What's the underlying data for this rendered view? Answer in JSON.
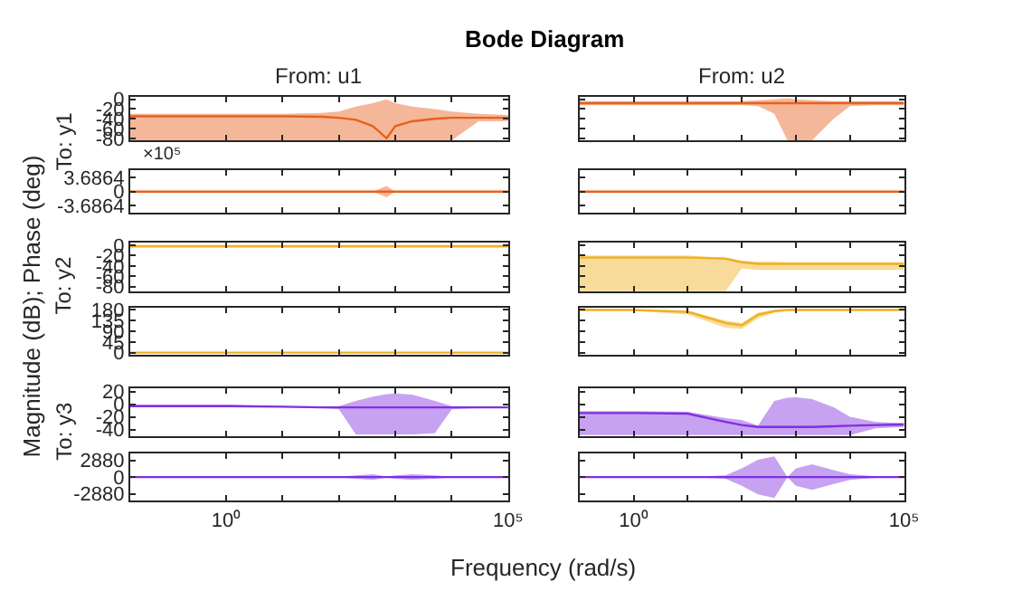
{
  "chart_data": [
    {
      "type": "line",
      "log": "x",
      "title": "From: u1",
      "ylabel": "To: y1",
      "annotations": [
        "Bode Diagram",
        "Magnitude (dB); Phase (deg)",
        "Frequency (rad/s)"
      ],
      "x": [
        0.02,
        0.1,
        1,
        10,
        50,
        100,
        200,
        400,
        700,
        1000,
        2000,
        5000,
        10000,
        30000,
        100000
      ],
      "xlim": [
        0.02,
        100000
      ],
      "xticks": [
        {
          "value": 1,
          "label": null
        },
        {
          "value": 10,
          "label": null
        },
        {
          "value": 100,
          "label": null
        },
        {
          "value": 1000,
          "label": null
        },
        {
          "value": 10000,
          "label": null
        },
        {
          "value": 100000,
          "label": null
        }
      ],
      "ylim": [
        -85,
        5
      ],
      "yticks": [
        0,
        -20,
        -40,
        -60,
        -80
      ],
      "tick_labels": "y",
      "series": [
        {
          "color": "#e8601c",
          "values": [
            -35,
            -35,
            -35,
            -35,
            -36,
            -38,
            -42,
            -55,
            -80,
            -55,
            -45,
            -40,
            -38,
            -38,
            -38
          ],
          "lower": [
            -84,
            -84,
            -84,
            -84,
            -84,
            -84,
            -84,
            -84,
            -84,
            -84,
            -84,
            -84,
            -84,
            -45,
            -45
          ],
          "upper": [
            -30,
            -30,
            -30,
            -30,
            -28,
            -25,
            -15,
            -8,
            0,
            -8,
            -15,
            -20,
            -25,
            -30,
            -32
          ]
        }
      ]
    },
    {
      "type": "line",
      "log": "x",
      "title": "From: u2",
      "x": [
        0.1,
        1,
        10,
        50,
        100,
        200,
        400,
        700,
        1000,
        2000,
        5000,
        10000,
        30000,
        100000
      ],
      "xlim": [
        0.1,
        100000
      ],
      "xticks": [
        {
          "value": 1,
          "label": null
        },
        {
          "value": 10,
          "label": null
        },
        {
          "value": 100,
          "label": null
        },
        {
          "value": 1000,
          "label": null
        },
        {
          "value": 10000,
          "label": null
        },
        {
          "value": 100000,
          "label": null
        }
      ],
      "ylim": [
        -85,
        5
      ],
      "yticks": [
        0,
        -20,
        -40,
        -60,
        -80
      ],
      "tick_labels": false,
      "series": [
        {
          "color": "#e8601c",
          "values": [
            -8,
            -8,
            -8,
            -8,
            -8,
            -8,
            -8,
            -8,
            -8,
            -8,
            -8,
            -8,
            -8,
            -8
          ],
          "lower": [
            -12,
            -12,
            -12,
            -12,
            -12,
            -14,
            -30,
            -84,
            -84,
            -84,
            -40,
            -14,
            -12,
            -12
          ],
          "upper": [
            -4,
            -4,
            -4,
            -4,
            -4,
            -2,
            0,
            2,
            0,
            -2,
            -4,
            -4,
            -4,
            -4
          ]
        }
      ]
    },
    {
      "type": "line",
      "log": "x",
      "annotations": [
        "×10⁵"
      ],
      "x": [
        0.02,
        0.1,
        1,
        10,
        50,
        100,
        200,
        400,
        700,
        1000,
        2000,
        5000,
        10000,
        30000,
        100000
      ],
      "xlim": [
        0.02,
        100000
      ],
      "xticks": [
        {
          "value": 1,
          "label": null
        },
        {
          "value": 10,
          "label": null
        },
        {
          "value": 100,
          "label": null
        },
        {
          "value": 1000,
          "label": null
        },
        {
          "value": 10000,
          "label": null
        },
        {
          "value": 100000,
          "label": null
        }
      ],
      "ylim": [
        -5.5,
        5.5
      ],
      "yticks": [
        3.6864,
        0,
        -3.6864
      ],
      "tick_labels": "y",
      "series": [
        {
          "color": "#e8601c",
          "values": [
            0,
            0,
            0,
            0,
            0,
            0,
            0,
            0,
            0,
            0,
            0,
            0,
            0,
            0,
            0
          ],
          "lower": [
            0,
            0,
            0,
            0,
            0,
            0,
            0,
            0,
            -1.5,
            0,
            0,
            0,
            0,
            0,
            0
          ],
          "upper": [
            0,
            0,
            0,
            0,
            0,
            0,
            0,
            0,
            1.5,
            0,
            0,
            0,
            0,
            0,
            0
          ]
        }
      ]
    },
    {
      "type": "line",
      "log": "x",
      "x": [
        0.1,
        1,
        10,
        50,
        100,
        200,
        400,
        700,
        1000,
        2000,
        5000,
        10000,
        30000,
        100000
      ],
      "xlim": [
        0.1,
        100000
      ],
      "xticks": [
        {
          "value": 1,
          "label": null
        },
        {
          "value": 10,
          "label": null
        },
        {
          "value": 100,
          "label": null
        },
        {
          "value": 1000,
          "label": null
        },
        {
          "value": 10000,
          "label": null
        },
        {
          "value": 100000,
          "label": null
        }
      ],
      "ylim": [
        -5.5,
        5.5
      ],
      "yticks": [
        3.6864,
        0,
        -3.6864
      ],
      "tick_labels": false,
      "series": [
        {
          "color": "#e8601c",
          "values": [
            0,
            0,
            0,
            0,
            0,
            0,
            0,
            0,
            0,
            0,
            0,
            0,
            0,
            0
          ]
        }
      ]
    },
    {
      "type": "line",
      "log": "x",
      "ylabel": "To: y2",
      "x": [
        0.02,
        0.1,
        1,
        10,
        50,
        100,
        200,
        400,
        700,
        1000,
        2000,
        5000,
        10000,
        30000,
        100000
      ],
      "xlim": [
        0.02,
        100000
      ],
      "xticks": [
        {
          "value": 1,
          "label": null
        },
        {
          "value": 10,
          "label": null
        },
        {
          "value": 100,
          "label": null
        },
        {
          "value": 1000,
          "label": null
        },
        {
          "value": 10000,
          "label": null
        },
        {
          "value": 100000,
          "label": null
        }
      ],
      "ylim": [
        -90,
        5
      ],
      "yticks": [
        0,
        -20,
        -40,
        -60,
        -80
      ],
      "tick_labels": "y",
      "series": [
        {
          "color": "#f0b020",
          "values": [
            -2,
            -2,
            -2,
            -2,
            -2,
            -2,
            -2,
            -2,
            -2,
            -2,
            -2,
            -2,
            -2,
            -2,
            -2
          ],
          "lower": [
            -5,
            -5,
            -5,
            -5,
            -5,
            -5,
            -5,
            -5,
            -5,
            -5,
            -5,
            -5,
            -5,
            -5,
            -5
          ],
          "upper": [
            0,
            0,
            0,
            0,
            0,
            0,
            0,
            0,
            0,
            0,
            0,
            0,
            0,
            0,
            0
          ]
        }
      ]
    },
    {
      "type": "line",
      "log": "x",
      "x": [
        0.1,
        1,
        10,
        50,
        100,
        200,
        400,
        700,
        1000,
        2000,
        5000,
        10000,
        30000,
        100000
      ],
      "xlim": [
        0.1,
        100000
      ],
      "xticks": [
        {
          "value": 1,
          "label": null
        },
        {
          "value": 10,
          "label": null
        },
        {
          "value": 100,
          "label": null
        },
        {
          "value": 1000,
          "label": null
        },
        {
          "value": 10000,
          "label": null
        },
        {
          "value": 100000,
          "label": null
        }
      ],
      "ylim": [
        -90,
        5
      ],
      "yticks": [
        0,
        -20,
        -40,
        -60,
        -80
      ],
      "tick_labels": false,
      "series": [
        {
          "color": "#f0b020",
          "values": [
            -24,
            -24,
            -24,
            -26,
            -33,
            -36,
            -36,
            -36,
            -36,
            -36,
            -36,
            -36,
            -36,
            -36
          ],
          "lower": [
            -89,
            -89,
            -89,
            -89,
            -45,
            -48,
            -48,
            -48,
            -48,
            -48,
            -48,
            -48,
            -48,
            -48
          ],
          "upper": [
            -20,
            -20,
            -20,
            -24,
            -30,
            -32,
            -32,
            -33,
            -33,
            -33,
            -33,
            -33,
            -33,
            -33
          ]
        }
      ]
    },
    {
      "type": "line",
      "log": "x",
      "x": [
        0.02,
        0.1,
        1,
        10,
        50,
        100,
        200,
        400,
        700,
        1000,
        2000,
        5000,
        10000,
        30000,
        100000
      ],
      "xlim": [
        0.02,
        100000
      ],
      "xticks": [
        {
          "value": 1,
          "label": null
        },
        {
          "value": 10,
          "label": null
        },
        {
          "value": 100,
          "label": null
        },
        {
          "value": 1000,
          "label": null
        },
        {
          "value": 10000,
          "label": null
        },
        {
          "value": 100000,
          "label": null
        }
      ],
      "ylim": [
        -10,
        190
      ],
      "yticks": [
        0,
        45,
        90,
        135,
        180
      ],
      "tick_labels": "y",
      "series": [
        {
          "color": "#f0b020",
          "values": [
            0,
            0,
            0,
            0,
            0,
            0,
            0,
            0,
            0,
            0,
            0,
            0,
            0,
            0,
            0
          ]
        }
      ]
    },
    {
      "type": "line",
      "log": "x",
      "x": [
        0.1,
        1,
        10,
        50,
        100,
        200,
        400,
        700,
        1000,
        2000,
        5000,
        10000,
        30000,
        100000
      ],
      "xlim": [
        0.1,
        100000
      ],
      "xticks": [
        {
          "value": 1,
          "label": null
        },
        {
          "value": 10,
          "label": null
        },
        {
          "value": 100,
          "label": null
        },
        {
          "value": 1000,
          "label": null
        },
        {
          "value": 10000,
          "label": null
        },
        {
          "value": 100000,
          "label": null
        }
      ],
      "ylim": [
        -10,
        190
      ],
      "yticks": [
        0,
        45,
        90,
        135,
        180
      ],
      "tick_labels": false,
      "series": [
        {
          "color": "#f0b020",
          "values": [
            180,
            180,
            172,
            125,
            115,
            160,
            175,
            180,
            180,
            180,
            180,
            180,
            180,
            180
          ],
          "lower": [
            178,
            178,
            160,
            105,
            100,
            145,
            168,
            178,
            178,
            178,
            178,
            178,
            178,
            178
          ],
          "upper": [
            182,
            182,
            178,
            135,
            125,
            168,
            180,
            182,
            182,
            182,
            182,
            182,
            182,
            182
          ]
        }
      ]
    },
    {
      "type": "line",
      "log": "x",
      "ylabel": "To: y3",
      "x": [
        0.02,
        0.1,
        1,
        10,
        50,
        100,
        200,
        400,
        700,
        1000,
        2000,
        5000,
        10000,
        30000,
        100000
      ],
      "xlim": [
        0.02,
        100000
      ],
      "xticks": [
        {
          "value": 1,
          "label": null
        },
        {
          "value": 10,
          "label": null
        },
        {
          "value": 100,
          "label": null
        },
        {
          "value": 1000,
          "label": null
        },
        {
          "value": 10000,
          "label": null
        },
        {
          "value": 100000,
          "label": null
        }
      ],
      "ylim": [
        -50,
        25
      ],
      "yticks": [
        20,
        0,
        -20,
        -40
      ],
      "tick_labels": "y",
      "series": [
        {
          "color": "#8030e0",
          "values": [
            -3,
            -3,
            -3,
            -4,
            -5,
            -5,
            -5,
            -5,
            -5,
            -5,
            -5,
            -5,
            -5,
            -5,
            -5
          ],
          "lower": [
            -5,
            -5,
            -5,
            -5,
            -6,
            -8,
            -48,
            -48,
            -48,
            -48,
            -48,
            -46,
            -8,
            -6,
            -6
          ],
          "upper": [
            -1,
            -1,
            -1,
            -3,
            -4,
            -3,
            5,
            12,
            16,
            17,
            15,
            5,
            -3,
            -4,
            -4
          ]
        }
      ]
    },
    {
      "type": "line",
      "log": "x",
      "x": [
        0.1,
        1,
        10,
        50,
        100,
        200,
        400,
        700,
        1000,
        2000,
        5000,
        10000,
        30000,
        100000
      ],
      "xlim": [
        0.1,
        100000
      ],
      "xticks": [
        {
          "value": 1,
          "label": null
        },
        {
          "value": 10,
          "label": null
        },
        {
          "value": 100,
          "label": null
        },
        {
          "value": 1000,
          "label": null
        },
        {
          "value": 10000,
          "label": null
        },
        {
          "value": 100000,
          "label": null
        }
      ],
      "ylim": [
        -50,
        25
      ],
      "yticks": [
        20,
        0,
        -20,
        -40
      ],
      "tick_labels": false,
      "series": [
        {
          "color": "#8030e0",
          "values": [
            -14,
            -14,
            -15,
            -28,
            -33,
            -36,
            -36,
            -36,
            -36,
            -36,
            -35,
            -34,
            -33,
            -32
          ],
          "lower": [
            -49,
            -49,
            -49,
            -49,
            -49,
            -49,
            -49,
            -49,
            -49,
            -49,
            -49,
            -49,
            -38,
            -36
          ],
          "upper": [
            -11,
            -11,
            -12,
            -22,
            -25,
            -34,
            5,
            10,
            11,
            8,
            -5,
            -20,
            -28,
            -30
          ]
        }
      ]
    },
    {
      "type": "line",
      "log": "x",
      "x": [
        0.02,
        0.1,
        1,
        10,
        50,
        100,
        200,
        400,
        700,
        1000,
        2000,
        5000,
        10000,
        30000,
        100000
      ],
      "xlim": [
        0.02,
        100000
      ],
      "xticks": [
        {
          "value": 1,
          "label": "10⁰"
        },
        {
          "value": 10,
          "label": null
        },
        {
          "value": 100,
          "label": null
        },
        {
          "value": 1000,
          "label": null
        },
        {
          "value": 10000,
          "label": null
        },
        {
          "value": 100000,
          "label": "10⁵"
        }
      ],
      "ylim": [
        -4100,
        4100
      ],
      "yticks": [
        2880,
        0,
        -2880
      ],
      "series": [
        {
          "color": "#8030e0",
          "values": [
            0,
            0,
            0,
            0,
            0,
            0,
            0,
            0,
            0,
            0,
            0,
            0,
            0,
            0,
            0
          ],
          "lower": [
            0,
            0,
            0,
            0,
            0,
            -50,
            -300,
            -500,
            -100,
            -300,
            -500,
            -300,
            -50,
            0,
            0
          ],
          "upper": [
            0,
            0,
            0,
            0,
            0,
            50,
            300,
            500,
            100,
            300,
            500,
            300,
            50,
            0,
            0
          ]
        }
      ]
    },
    {
      "type": "line",
      "log": "x",
      "x": [
        0.1,
        1,
        10,
        50,
        100,
        200,
        400,
        700,
        1000,
        2000,
        5000,
        10000,
        30000,
        100000
      ],
      "xlim": [
        0.1,
        100000
      ],
      "xticks": [
        {
          "value": 1,
          "label": "10⁰"
        },
        {
          "value": 10,
          "label": null
        },
        {
          "value": 100,
          "label": null
        },
        {
          "value": 1000,
          "label": null
        },
        {
          "value": 10000,
          "label": null
        },
        {
          "value": 100000,
          "label": "10⁵"
        }
      ],
      "ylim": [
        -4100,
        4100
      ],
      "yticks": [
        2880,
        0,
        -2880
      ],
      "tick_labels": "x",
      "series": [
        {
          "color": "#8030e0",
          "values": [
            0,
            0,
            0,
            0,
            0,
            0,
            0,
            0,
            0,
            0,
            0,
            0,
            0,
            0
          ],
          "lower": [
            0,
            0,
            0,
            -300,
            -1500,
            -3000,
            -3600,
            0,
            -1500,
            -2200,
            -1200,
            -500,
            -150,
            0
          ],
          "upper": [
            0,
            0,
            0,
            300,
            1500,
            3000,
            3600,
            0,
            1500,
            2200,
            1200,
            500,
            150,
            0
          ]
        }
      ]
    }
  ]
}
